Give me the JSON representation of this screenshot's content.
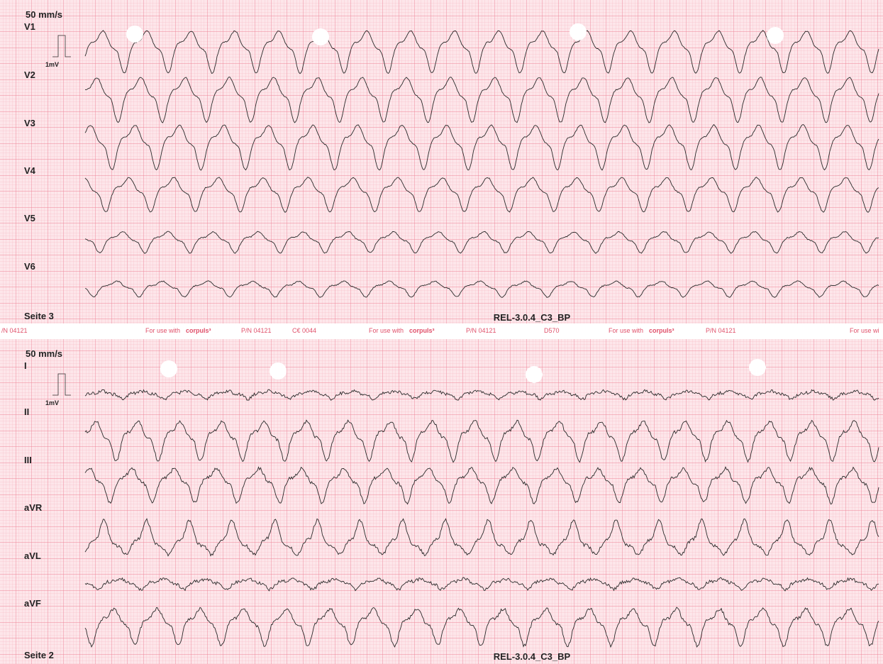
{
  "panels": [
    {
      "speed": "50 mm/s",
      "calibration": "1mV",
      "leads": [
        "V1",
        "V2",
        "V3",
        "V4",
        "V5",
        "V6"
      ],
      "page": "Seite 3",
      "footer": "REL-3.0.4_C3_BP"
    },
    {
      "speed": "50 mm/s",
      "calibration": "1mV",
      "leads": [
        "I",
        "II",
        "III",
        "aVR",
        "aVL",
        "aVF"
      ],
      "page": "Seite 2",
      "footer": "REL-3.0.4_C3_BP"
    }
  ],
  "strip": {
    "items": [
      "/N 04121",
      "For use with",
      "corpuls³",
      "P/N 04121",
      "C€ 0044",
      "For use with",
      "corpuls³",
      "P/N 04121",
      "D570",
      "For use with",
      "corpuls³",
      "P/N 04121",
      "For use wi"
    ]
  }
}
